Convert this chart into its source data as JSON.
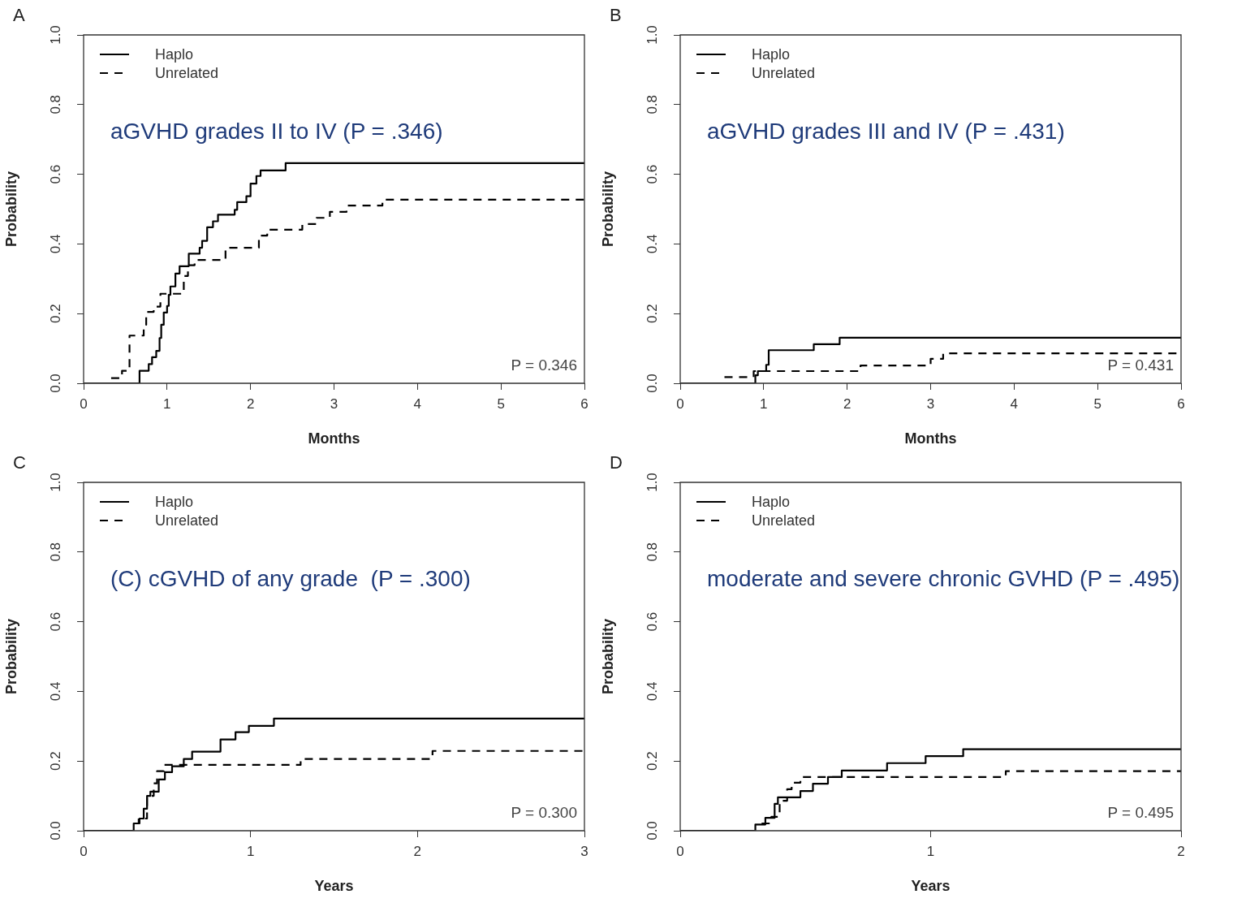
{
  "chart_data": [
    {
      "type": "step",
      "title": "aGVHD grades II to IV (P = .346)",
      "xlabel": "Months",
      "ylabel": "Probability",
      "annotations": [
        "A",
        "P = 0.346"
      ],
      "legend": "top left",
      "grid": false,
      "xlim": [
        0,
        6
      ],
      "xticks": [
        0,
        1,
        2,
        3,
        4,
        5,
        6
      ],
      "ylim": [
        0,
        1
      ],
      "yticks": [
        {
          "value": 0,
          "label": "0.0"
        },
        {
          "value": 0.2,
          "label": "0.2"
        },
        {
          "value": 0.4,
          "label": "0.4"
        },
        {
          "value": 0.6,
          "label": "0.6"
        },
        {
          "value": 0.8,
          "label": "0.8"
        },
        {
          "value": 1,
          "label": "1.0"
        }
      ],
      "series": [
        {
          "name": "Haplo",
          "color": "#000000",
          "line_style": "solid",
          "x": [
            0,
            0.67,
            0.78,
            0.82,
            0.87,
            0.91,
            0.93,
            0.96,
            1.0,
            1.02,
            1.04,
            1.1,
            1.15,
            1.26,
            1.39,
            1.42,
            1.48,
            1.55,
            1.61,
            1.81,
            1.84,
            1.95,
            2.0,
            2.07,
            2.12,
            2.42,
            6
          ],
          "values": [
            0,
            0.036,
            0.055,
            0.075,
            0.093,
            0.13,
            0.168,
            0.203,
            0.222,
            0.254,
            0.278,
            0.315,
            0.336,
            0.372,
            0.389,
            0.409,
            0.448,
            0.465,
            0.484,
            0.498,
            0.52,
            0.537,
            0.573,
            0.595,
            0.611,
            0.632,
            0.632
          ]
        },
        {
          "name": "Unrelated",
          "color": "#000000",
          "line_style": "dashed",
          "x": [
            0.33,
            0.46,
            0.55,
            0.72,
            0.75,
            0.84,
            0.92,
            1.2,
            1.25,
            1.33,
            1.7,
            2.1,
            2.2,
            2.62,
            2.79,
            2.95,
            3.15,
            3.58,
            6
          ],
          "values": [
            0.015,
            0.036,
            0.137,
            0.168,
            0.205,
            0.22,
            0.257,
            0.308,
            0.339,
            0.354,
            0.389,
            0.424,
            0.441,
            0.457,
            0.475,
            0.492,
            0.51,
            0.527,
            0.527
          ]
        }
      ]
    },
    {
      "type": "step",
      "title": "aGVHD grades III and IV (P = .431)",
      "xlabel": "Months",
      "ylabel": "Probability",
      "annotations": [
        "B",
        "P = 0.431"
      ],
      "legend": "top left",
      "grid": false,
      "xlim": [
        0,
        6
      ],
      "xticks": [
        0,
        1,
        2,
        3,
        4,
        5,
        6
      ],
      "ylim": [
        0,
        1
      ],
      "yticks": [
        {
          "value": 0,
          "label": "0.0"
        },
        {
          "value": 0.2,
          "label": "0.2"
        },
        {
          "value": 0.4,
          "label": "0.4"
        },
        {
          "value": 0.6,
          "label": "0.6"
        },
        {
          "value": 0.8,
          "label": "0.8"
        },
        {
          "value": 1,
          "label": "1.0"
        }
      ],
      "series": [
        {
          "name": "Haplo",
          "color": "#000000",
          "line_style": "solid",
          "x": [
            0,
            0.9,
            0.93,
            1.03,
            1.06,
            1.6,
            1.91,
            6
          ],
          "values": [
            0,
            0.023,
            0.035,
            0.053,
            0.095,
            0.112,
            0.131,
            0.131
          ]
        },
        {
          "name": "Unrelated",
          "color": "#000000",
          "line_style": "dashed",
          "x": [
            0.53,
            0.88,
            2.16,
            3.0,
            3.15,
            6
          ],
          "values": [
            0.018,
            0.035,
            0.051,
            0.07,
            0.086,
            0.086
          ]
        }
      ]
    },
    {
      "type": "step",
      "title": "(C) cGVHD of any grade  (P = .300)",
      "xlabel": "Years",
      "ylabel": "Probability",
      "annotations": [
        "C",
        "P = 0.300"
      ],
      "legend": "top left",
      "grid": false,
      "xlim": [
        0,
        3
      ],
      "xticks": [
        0,
        1,
        2,
        3
      ],
      "ylim": [
        0,
        1
      ],
      "yticks": [
        {
          "value": 0,
          "label": "0.0"
        },
        {
          "value": 0.2,
          "label": "0.2"
        },
        {
          "value": 0.4,
          "label": "0.4"
        },
        {
          "value": 0.6,
          "label": "0.6"
        },
        {
          "value": 0.8,
          "label": "0.8"
        },
        {
          "value": 1,
          "label": "1.0"
        }
      ],
      "series": [
        {
          "name": "Haplo",
          "color": "#000000",
          "line_style": "solid",
          "x": [
            0,
            0.3,
            0.335,
            0.36,
            0.38,
            0.4,
            0.45,
            0.487,
            0.53,
            0.6,
            0.65,
            0.82,
            0.91,
            0.99,
            1.14,
            3
          ],
          "values": [
            0,
            0.021,
            0.035,
            0.063,
            0.1,
            0.112,
            0.147,
            0.168,
            0.185,
            0.206,
            0.227,
            0.262,
            0.283,
            0.301,
            0.322,
            0.322
          ]
        },
        {
          "name": "Unrelated",
          "color": "#000000",
          "line_style": "dashed",
          "x": [
            0.31,
            0.33,
            0.38,
            0.42,
            0.44,
            0.48,
            1.3,
            2.09,
            3
          ],
          "values": [
            0.021,
            0.035,
            0.1,
            0.136,
            0.171,
            0.189,
            0.206,
            0.229,
            0.229
          ]
        }
      ]
    },
    {
      "type": "step",
      "title": "moderate and severe chronic GVHD (P = .495)",
      "xlabel": "Years",
      "ylabel": "Probability",
      "annotations": [
        "D",
        "P = 0.495"
      ],
      "legend": "top left",
      "grid": false,
      "xlim": [
        0,
        2
      ],
      "xticks": [
        0,
        1,
        2
      ],
      "ylim": [
        0,
        1
      ],
      "yticks": [
        {
          "value": 0,
          "label": "0.0"
        },
        {
          "value": 0.2,
          "label": "0.2"
        },
        {
          "value": 0.4,
          "label": "0.4"
        },
        {
          "value": 0.6,
          "label": "0.6"
        },
        {
          "value": 0.8,
          "label": "0.8"
        },
        {
          "value": 1,
          "label": "1.0"
        }
      ],
      "series": [
        {
          "name": "Haplo",
          "color": "#000000",
          "line_style": "solid",
          "x": [
            0,
            0.3,
            0.34,
            0.377,
            0.39,
            0.48,
            0.53,
            0.59,
            0.645,
            0.826,
            0.98,
            1.13,
            2
          ],
          "values": [
            0,
            0.018,
            0.037,
            0.077,
            0.096,
            0.114,
            0.135,
            0.154,
            0.173,
            0.194,
            0.214,
            0.234,
            0.234
          ]
        },
        {
          "name": "Unrelated",
          "color": "#000000",
          "line_style": "dashed",
          "x": [
            0.325,
            0.364,
            0.397,
            0.427,
            0.445,
            0.48,
            1.3,
            2
          ],
          "values": [
            0.021,
            0.04,
            0.086,
            0.119,
            0.138,
            0.154,
            0.171,
            0.171
          ]
        }
      ]
    }
  ]
}
